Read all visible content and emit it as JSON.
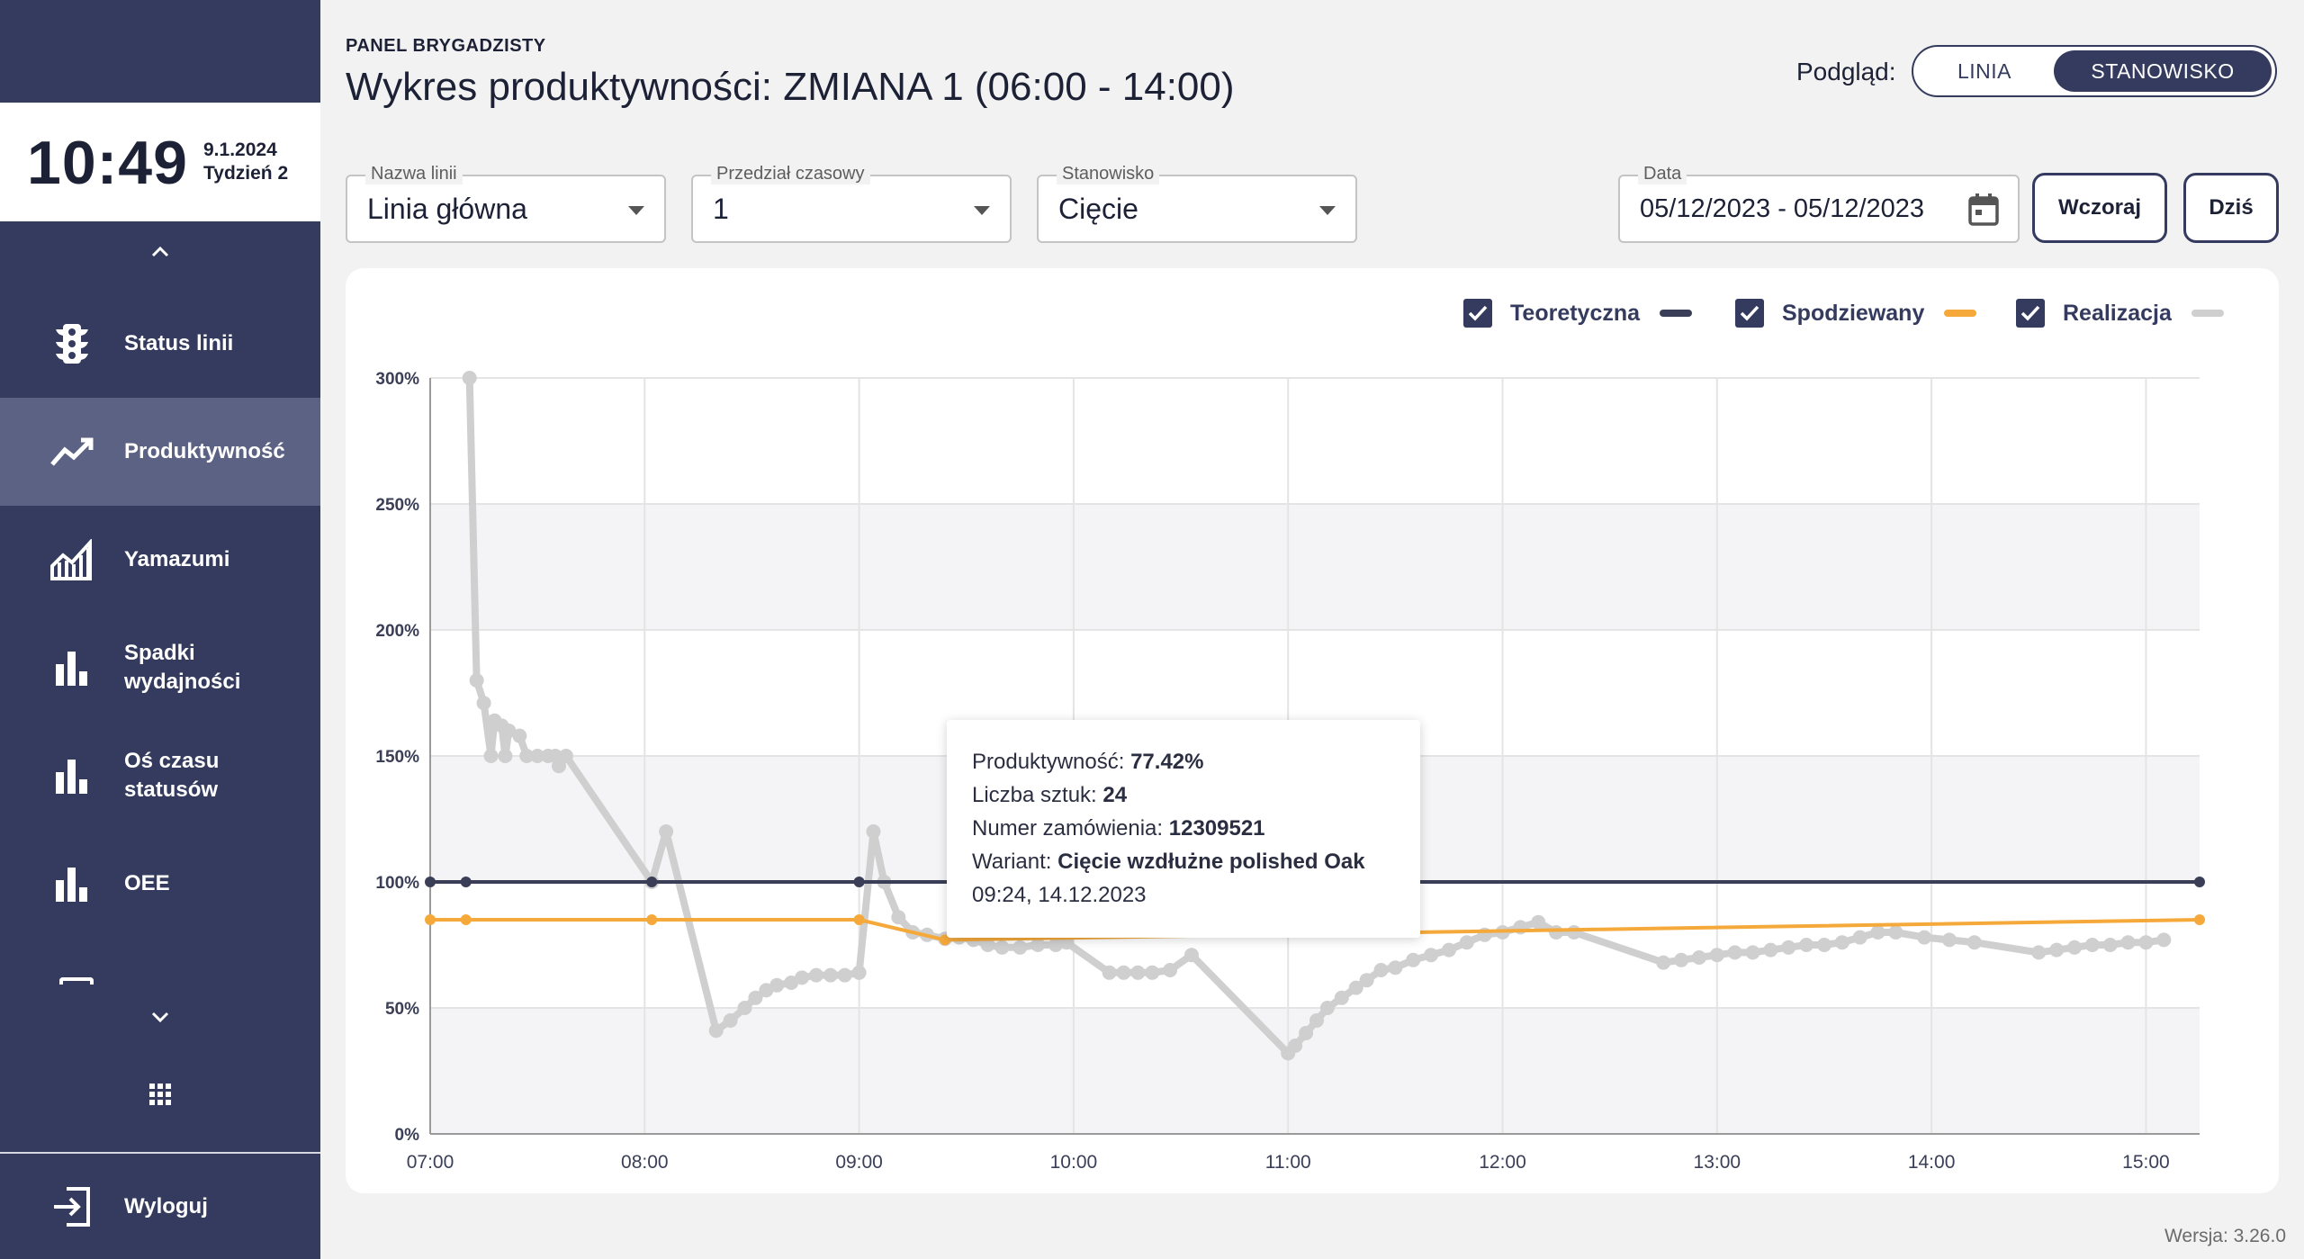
{
  "sidebar": {
    "time": "10:49",
    "date": "9.1.2024",
    "week": "Tydzień 2",
    "items": [
      {
        "label": "Status linii",
        "icon": "traffic-light-icon"
      },
      {
        "label": "Produktywność",
        "icon": "trending-up-icon",
        "active": true
      },
      {
        "label": "Yamazumi",
        "icon": "area-chart-icon"
      },
      {
        "label": "Spadki\nwydajności",
        "icon": "bar-chart-icon"
      },
      {
        "label": "Oś czasu\nstatusów",
        "icon": "bar-chart-icon"
      },
      {
        "label": "OEE",
        "icon": "bar-chart-icon"
      }
    ],
    "logout_label": "Wyloguj"
  },
  "header": {
    "panel_label": "PANEL BRYGADZISTY",
    "title": "Wykres produktywności: ZMIANA 1 (06:00 - 14:00)",
    "view_label": "Podgląd:",
    "view_options": [
      "LINIA",
      "STANOWISKO"
    ],
    "view_selected": "STANOWISKO"
  },
  "filters": {
    "line": {
      "label": "Nazwa linii",
      "value": "Linia główna"
    },
    "interval": {
      "label": "Przedział czasowy",
      "value": "1"
    },
    "station": {
      "label": "Stanowisko",
      "value": "Cięcie"
    },
    "date": {
      "label": "Data",
      "value": "05/12/2023 - 05/12/2023"
    },
    "yesterday_label": "Wczoraj",
    "today_label": "Dziś"
  },
  "tooltip": {
    "productivity_label": "Produktywność:",
    "productivity_value": "77.42%",
    "count_label": "Liczba sztuk:",
    "count_value": "24",
    "order_label": "Numer zamówienia:",
    "order_value": "12309521",
    "variant_label": "Wariant:",
    "variant_value": "Cięcie wzdłużne polished Oak",
    "timestamp": "09:24, 14.12.2023"
  },
  "colors": {
    "sidebar": "#343b5e",
    "theoretical": "#3a3f57",
    "expected": "#f5a93b",
    "actual": "#cfcfcf"
  },
  "chart_data": {
    "type": "line",
    "x_ticks": [
      "07:00",
      "08:00",
      "09:00",
      "10:00",
      "11:00",
      "12:00",
      "13:00",
      "14:00",
      "15:00"
    ],
    "y_ticks": [
      "0%",
      "50%",
      "100%",
      "150%",
      "200%",
      "250%",
      "300%"
    ],
    "xlim": [
      "07:00",
      "15:15"
    ],
    "ylim": [
      0,
      300
    ],
    "grid": true,
    "legend_placement": "top-right",
    "series": [
      {
        "name": "Teoretyczna",
        "color": "#3a3f57",
        "points": [
          [
            "07:00",
            100
          ],
          [
            "07:10",
            100
          ],
          [
            "08:02",
            100
          ],
          [
            "09:00",
            100
          ],
          [
            "15:15",
            100
          ]
        ]
      },
      {
        "name": "Spodziewany",
        "color": "#f5a93b",
        "points": [
          [
            "07:00",
            85
          ],
          [
            "07:10",
            85
          ],
          [
            "08:02",
            85
          ],
          [
            "09:00",
            85
          ],
          [
            "09:24",
            77
          ],
          [
            "15:15",
            85
          ]
        ]
      },
      {
        "name": "Realizacja",
        "color": "#cfcfcf",
        "points": [
          [
            "07:11",
            300
          ],
          [
            "07:13",
            180
          ],
          [
            "07:15",
            171
          ],
          [
            "07:17",
            150
          ],
          [
            "07:18",
            164
          ],
          [
            "07:20",
            162
          ],
          [
            "07:21",
            150
          ],
          [
            "07:22",
            160
          ],
          [
            "07:25",
            158
          ],
          [
            "07:27",
            150
          ],
          [
            "07:30",
            150
          ],
          [
            "07:33",
            150
          ],
          [
            "07:35",
            150
          ],
          [
            "07:36",
            146
          ],
          [
            "07:38",
            150
          ],
          [
            "08:02",
            100
          ],
          [
            "08:06",
            120
          ],
          [
            "08:20",
            41
          ],
          [
            "08:24",
            45
          ],
          [
            "08:28",
            50
          ],
          [
            "08:31",
            54
          ],
          [
            "08:34",
            57
          ],
          [
            "08:37",
            59
          ],
          [
            "08:41",
            60
          ],
          [
            "08:44",
            62
          ],
          [
            "08:48",
            63
          ],
          [
            "08:52",
            63
          ],
          [
            "08:56",
            63
          ],
          [
            "09:00",
            64
          ],
          [
            "09:04",
            120
          ],
          [
            "09:07",
            100
          ],
          [
            "09:11",
            86
          ],
          [
            "09:15",
            80
          ],
          [
            "09:19",
            79
          ],
          [
            "09:24",
            77.42
          ],
          [
            "09:28",
            78
          ],
          [
            "09:32",
            77
          ],
          [
            "09:36",
            75
          ],
          [
            "09:40",
            74
          ],
          [
            "09:45",
            74
          ],
          [
            "09:50",
            75
          ],
          [
            "09:55",
            75
          ],
          [
            "09:58",
            76
          ],
          [
            "10:10",
            64
          ],
          [
            "10:14",
            64
          ],
          [
            "10:18",
            64
          ],
          [
            "10:22",
            64
          ],
          [
            "10:27",
            65
          ],
          [
            "10:33",
            71
          ],
          [
            "11:00",
            32
          ],
          [
            "11:02",
            35
          ],
          [
            "11:05",
            40
          ],
          [
            "11:08",
            45
          ],
          [
            "11:11",
            50
          ],
          [
            "11:15",
            54
          ],
          [
            "11:19",
            58
          ],
          [
            "11:22",
            61
          ],
          [
            "11:26",
            65
          ],
          [
            "11:30",
            66
          ],
          [
            "11:35",
            69
          ],
          [
            "11:40",
            71
          ],
          [
            "11:45",
            73
          ],
          [
            "11:50",
            76
          ],
          [
            "11:55",
            79
          ],
          [
            "12:00",
            80
          ],
          [
            "12:05",
            82
          ],
          [
            "12:10",
            84
          ],
          [
            "12:15",
            80
          ],
          [
            "12:20",
            80
          ],
          [
            "12:45",
            68
          ],
          [
            "12:50",
            69
          ],
          [
            "12:55",
            70
          ],
          [
            "13:00",
            71
          ],
          [
            "13:05",
            72
          ],
          [
            "13:10",
            72
          ],
          [
            "13:15",
            73
          ],
          [
            "13:20",
            74
          ],
          [
            "13:25",
            75
          ],
          [
            "13:30",
            75
          ],
          [
            "13:35",
            76
          ],
          [
            "13:40",
            78
          ],
          [
            "13:45",
            80
          ],
          [
            "13:50",
            80
          ],
          [
            "13:58",
            78
          ],
          [
            "14:05",
            77
          ],
          [
            "14:12",
            76
          ],
          [
            "14:30",
            72
          ],
          [
            "14:35",
            73
          ],
          [
            "14:40",
            74
          ],
          [
            "14:45",
            75
          ],
          [
            "14:50",
            75
          ],
          [
            "14:55",
            76
          ],
          [
            "15:00",
            76
          ],
          [
            "15:05",
            77
          ]
        ]
      }
    ]
  },
  "version": "Wersja: 3.26.0"
}
